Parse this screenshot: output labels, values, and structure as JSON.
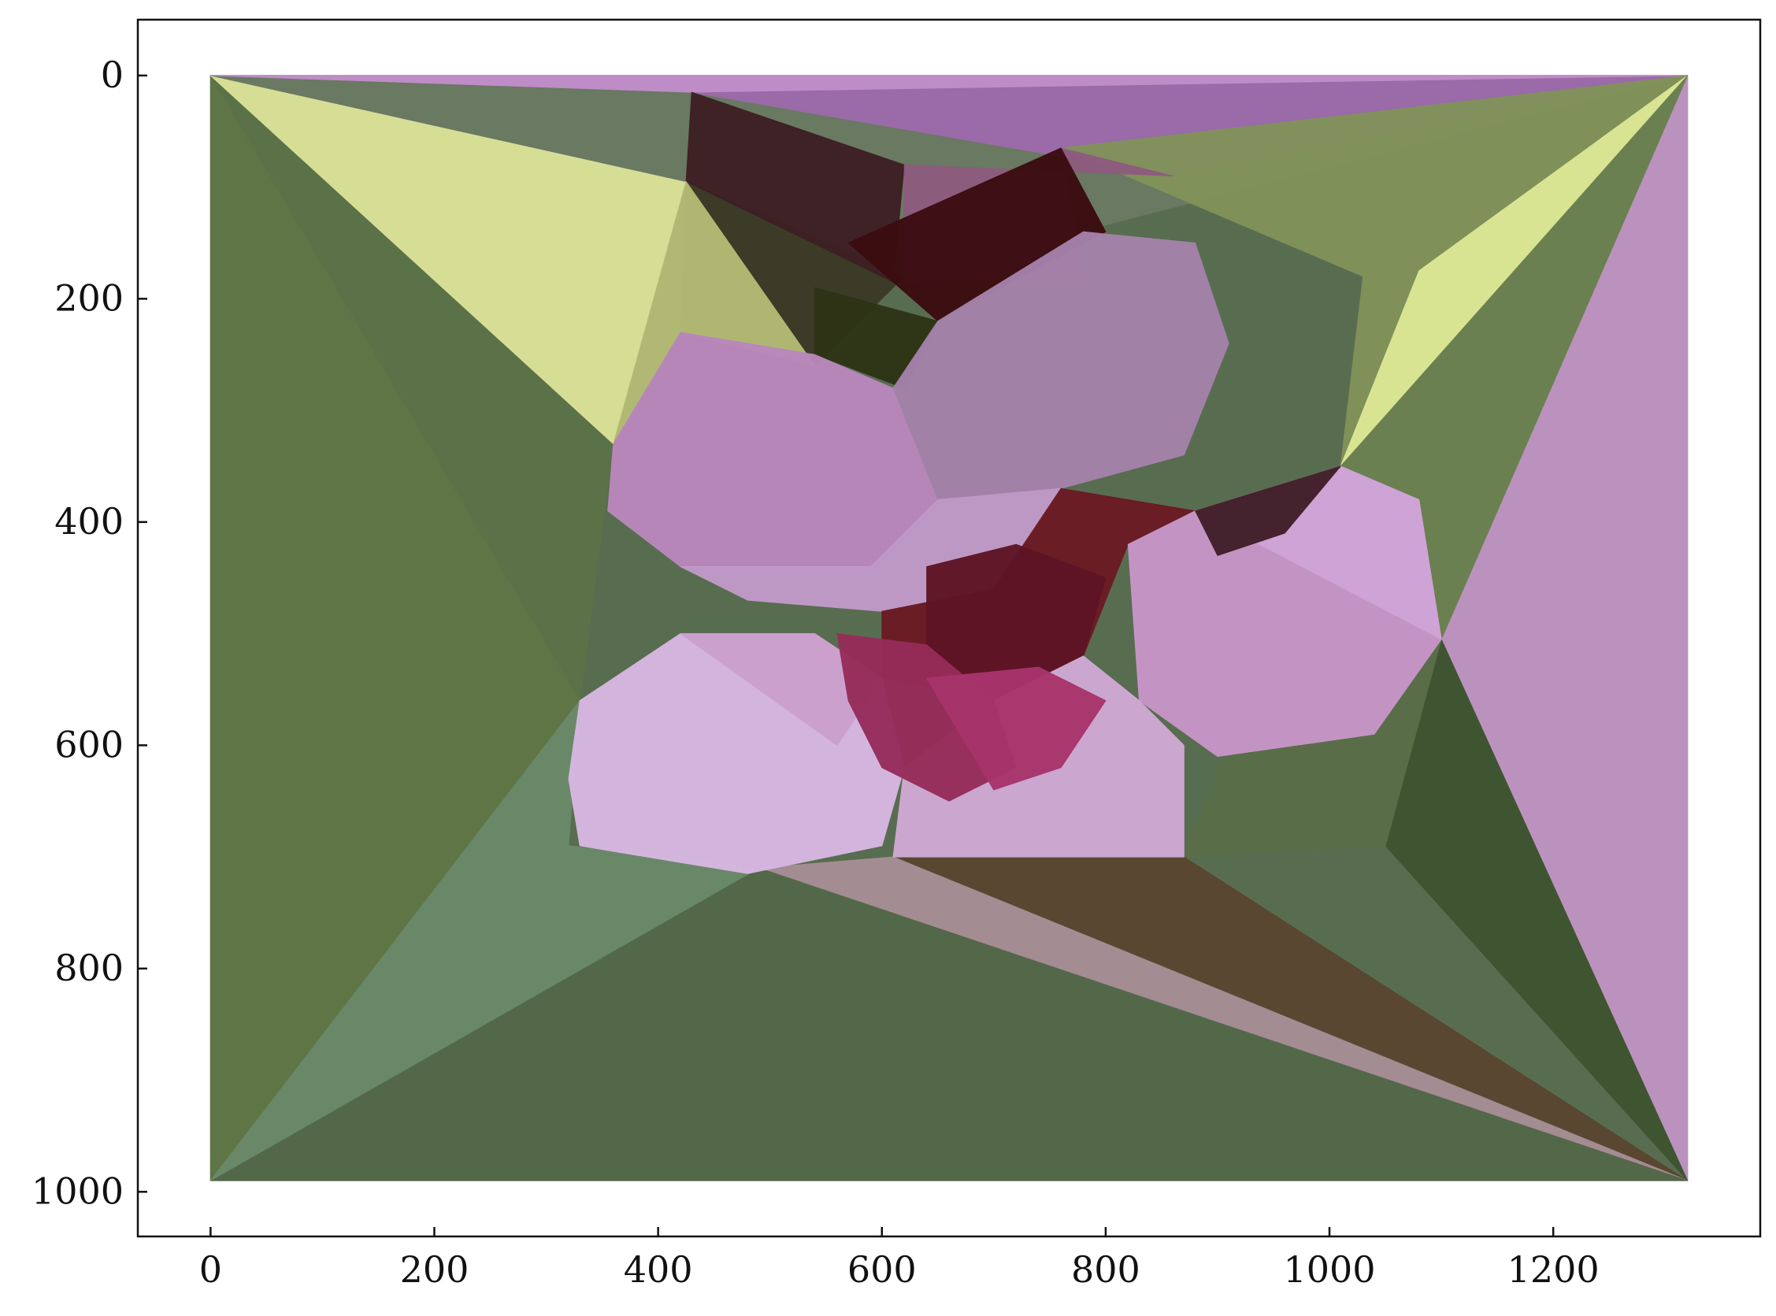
{
  "chart_data": {
    "type": "image",
    "title": "",
    "xlabel": "",
    "ylabel": "",
    "xlim": [
      -65,
      1385
    ],
    "ylim": [
      1040,
      -50
    ],
    "y_inverted": true,
    "image_extent": {
      "x": [
        0,
        1320
      ],
      "y": [
        0,
        990
      ]
    },
    "x_ticks": [
      0,
      200,
      400,
      600,
      800,
      1000,
      1200
    ],
    "y_ticks": [
      0,
      200,
      400,
      600,
      800,
      1000
    ],
    "x_tick_labels": [
      "0",
      "200",
      "400",
      "600",
      "800",
      "1000",
      "1200"
    ],
    "y_tick_labels": [
      "0",
      "200",
      "400",
      "600",
      "800",
      "1000"
    ],
    "grid": false,
    "content": "low-poly triangulated rendering of a pink flower on a green and yellow background",
    "colors": {
      "background_dark_green": "#526849",
      "background_green": "#607646",
      "yellow_green": "#dce39a",
      "olive": "#81925a",
      "purple": "#9e6aab",
      "mauve": "#c094c3",
      "petal_light": "#d8b6e2",
      "petal_mid": "#c79ac8",
      "petal_dark": "#b486b8",
      "flower_center": "#5e1424",
      "brown": "#5a4630"
    },
    "polygons": [
      {
        "fill": "#526849",
        "points": [
          [
            0,
            0
          ],
          [
            1320,
            0
          ],
          [
            1320,
            990
          ],
          [
            0,
            990
          ]
        ]
      },
      {
        "fill": "#607646",
        "points": [
          [
            0,
            0
          ],
          [
            330,
            560
          ],
          [
            0,
            990
          ]
        ]
      },
      {
        "fill": "#5c7348",
        "points": [
          [
            0,
            0
          ],
          [
            425,
            95
          ],
          [
            360,
            330
          ],
          [
            330,
            560
          ]
        ]
      },
      {
        "fill": "#dce39a",
        "points": [
          [
            0,
            0
          ],
          [
            425,
            95
          ],
          [
            360,
            330
          ]
        ]
      },
      {
        "fill": "#6a7a63",
        "points": [
          [
            0,
            0
          ],
          [
            1320,
            0
          ],
          [
            620,
            180
          ],
          [
            425,
            95
          ]
        ]
      },
      {
        "fill": "#9e6aab",
        "points": [
          [
            0,
            0
          ],
          [
            1320,
            0
          ],
          [
            860,
            90
          ],
          [
            430,
            15
          ]
        ]
      },
      {
        "fill": "#c08ec8",
        "points": [
          [
            0,
            0
          ],
          [
            1320,
            0
          ],
          [
            430,
            15
          ]
        ]
      },
      {
        "fill": "#81925a",
        "points": [
          [
            1320,
            0
          ],
          [
            760,
            65
          ],
          [
            1030,
            180
          ],
          [
            1010,
            350
          ]
        ]
      },
      {
        "fill": "#dde896",
        "points": [
          [
            1320,
            0
          ],
          [
            1080,
            175
          ],
          [
            1010,
            350
          ]
        ]
      },
      {
        "fill": "#c094c3",
        "points": [
          [
            1320,
            0
          ],
          [
            1320,
            990
          ],
          [
            1100,
            505
          ]
        ]
      },
      {
        "fill": "#6b8150",
        "points": [
          [
            1320,
            0
          ],
          [
            1100,
            505
          ],
          [
            1010,
            350
          ]
        ]
      },
      {
        "fill": "#3f5530",
        "points": [
          [
            1100,
            505
          ],
          [
            1320,
            990
          ],
          [
            1050,
            690
          ]
        ]
      },
      {
        "fill": "#5a6f48",
        "points": [
          [
            1010,
            350
          ],
          [
            1100,
            505
          ],
          [
            1050,
            690
          ],
          [
            870,
            700
          ]
        ]
      },
      {
        "fill": "#5a4630",
        "points": [
          [
            870,
            700
          ],
          [
            1320,
            990
          ],
          [
            610,
            700
          ]
        ]
      },
      {
        "fill": "#a88e96",
        "points": [
          [
            1320,
            990
          ],
          [
            610,
            700
          ],
          [
            490,
            710
          ]
        ]
      },
      {
        "fill": "#526849",
        "points": [
          [
            0,
            990
          ],
          [
            1320,
            990
          ],
          [
            490,
            710
          ]
        ]
      },
      {
        "fill": "#6a8a6a",
        "points": [
          [
            0,
            990
          ],
          [
            330,
            560
          ],
          [
            320,
            690
          ],
          [
            490,
            710
          ]
        ]
      },
      {
        "fill": "#3b3a26",
        "points": [
          [
            425,
            95
          ],
          [
            620,
            180
          ],
          [
            540,
            260
          ],
          [
            420,
            230
          ]
        ]
      },
      {
        "fill": "#3d1f24",
        "points": [
          [
            430,
            15
          ],
          [
            620,
            80
          ],
          [
            610,
            185
          ],
          [
            425,
            95
          ]
        ]
      },
      {
        "fill": "#b4bc76",
        "points": [
          [
            425,
            95
          ],
          [
            540,
            260
          ],
          [
            420,
            230
          ],
          [
            360,
            330
          ]
        ]
      },
      {
        "fill": "#8d5b7e",
        "points": [
          [
            620,
            80
          ],
          [
            860,
            90
          ],
          [
            760,
            65
          ],
          [
            780,
            180
          ],
          [
            620,
            185
          ]
        ]
      },
      {
        "fill": "#3b0c10",
        "points": [
          [
            570,
            150
          ],
          [
            760,
            65
          ],
          [
            800,
            140
          ],
          [
            650,
            220
          ]
        ]
      },
      {
        "fill": "#2e3315",
        "points": [
          [
            540,
            190
          ],
          [
            650,
            220
          ],
          [
            620,
            280
          ],
          [
            540,
            250
          ]
        ]
      },
      {
        "fill": "#ba88bd",
        "points": [
          [
            360,
            330
          ],
          [
            420,
            230
          ],
          [
            540,
            250
          ],
          [
            610,
            280
          ],
          [
            650,
            380
          ],
          [
            590,
            440
          ],
          [
            420,
            440
          ],
          [
            355,
            390
          ]
        ]
      },
      {
        "fill": "#a682ab",
        "points": [
          [
            650,
            220
          ],
          [
            780,
            140
          ],
          [
            880,
            150
          ],
          [
            910,
            240
          ],
          [
            870,
            340
          ],
          [
            760,
            370
          ],
          [
            650,
            380
          ],
          [
            610,
            280
          ]
        ]
      },
      {
        "fill": "#c39ac9",
        "points": [
          [
            420,
            440
          ],
          [
            590,
            440
          ],
          [
            650,
            380
          ],
          [
            760,
            370
          ],
          [
            700,
            460
          ],
          [
            600,
            480
          ],
          [
            480,
            470
          ]
        ]
      },
      {
        "fill": "#6b1a24",
        "points": [
          [
            600,
            480
          ],
          [
            700,
            460
          ],
          [
            760,
            370
          ],
          [
            880,
            390
          ],
          [
            820,
            420
          ],
          [
            780,
            520
          ],
          [
            700,
            560
          ],
          [
            600,
            540
          ]
        ]
      },
      {
        "fill": "#5e1424",
        "points": [
          [
            640,
            440
          ],
          [
            720,
            420
          ],
          [
            800,
            450
          ],
          [
            780,
            520
          ],
          [
            700,
            560
          ],
          [
            640,
            510
          ]
        ]
      },
      {
        "fill": "#c896c8",
        "points": [
          [
            820,
            420
          ],
          [
            880,
            390
          ],
          [
            1010,
            350
          ],
          [
            1080,
            380
          ],
          [
            1100,
            505
          ],
          [
            1040,
            590
          ],
          [
            900,
            610
          ],
          [
            830,
            560
          ]
        ]
      },
      {
        "fill": "#cfa4d6",
        "points": [
          [
            880,
            390
          ],
          [
            1010,
            350
          ],
          [
            1080,
            380
          ],
          [
            1100,
            505
          ]
        ]
      },
      {
        "fill": "#d9b7e3",
        "points": [
          [
            330,
            560
          ],
          [
            420,
            500
          ],
          [
            540,
            500
          ],
          [
            600,
            540
          ],
          [
            620,
            620
          ],
          [
            600,
            690
          ],
          [
            480,
            715
          ],
          [
            330,
            690
          ],
          [
            320,
            630
          ]
        ]
      },
      {
        "fill": "#cba0cd",
        "points": [
          [
            420,
            500
          ],
          [
            540,
            500
          ],
          [
            600,
            540
          ],
          [
            560,
            600
          ]
        ]
      },
      {
        "fill": "#d0aad6",
        "points": [
          [
            610,
            700
          ],
          [
            620,
            620
          ],
          [
            700,
            560
          ],
          [
            780,
            520
          ],
          [
            830,
            560
          ],
          [
            870,
            600
          ],
          [
            870,
            700
          ]
        ]
      },
      {
        "fill": "#962c5a",
        "points": [
          [
            560,
            500
          ],
          [
            640,
            510
          ],
          [
            700,
            560
          ],
          [
            720,
            620
          ],
          [
            660,
            650
          ],
          [
            600,
            620
          ],
          [
            570,
            560
          ]
        ]
      },
      {
        "fill": "#a8346c",
        "points": [
          [
            640,
            540
          ],
          [
            740,
            530
          ],
          [
            800,
            560
          ],
          [
            760,
            620
          ],
          [
            700,
            640
          ]
        ]
      },
      {
        "fill": "#3f1e28",
        "points": [
          [
            880,
            390
          ],
          [
            1010,
            350
          ],
          [
            960,
            410
          ],
          [
            900,
            430
          ]
        ]
      }
    ]
  }
}
